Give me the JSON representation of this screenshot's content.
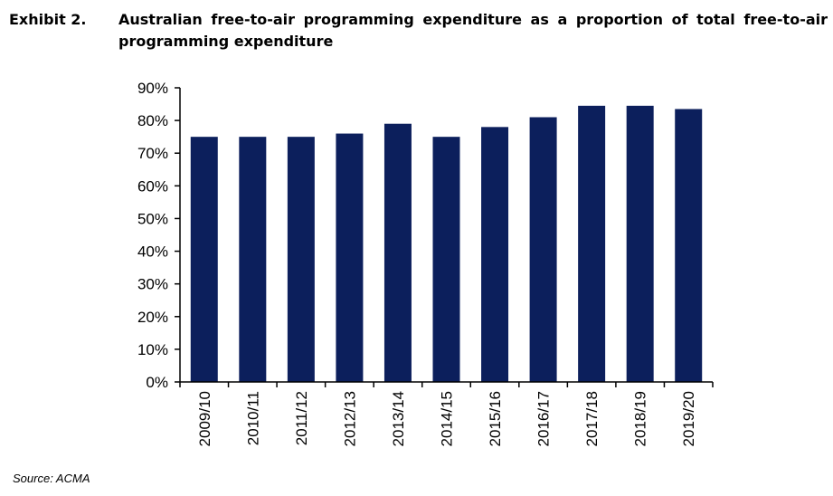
{
  "exhibit": {
    "label": "Exhibit 2.",
    "title": "Australian free-to-air programming expenditure as a proportion of total free-to-air programming expenditure"
  },
  "source": "Source: ACMA",
  "colors": {
    "bar": "#0c1f5c",
    "axis": "#000000",
    "text": "#000000"
  },
  "chart_data": {
    "type": "bar",
    "categories": [
      "2009/10",
      "2010/11",
      "2011/12",
      "2012/13",
      "2013/14",
      "2014/15",
      "2015/16",
      "2016/17",
      "2017/18",
      "2018/19",
      "2019/20"
    ],
    "values": [
      75,
      75,
      75,
      76,
      79,
      75,
      78,
      81,
      84.5,
      84.5,
      83.5
    ],
    "y_ticks": [
      "0%",
      "10%",
      "20%",
      "30%",
      "40%",
      "50%",
      "60%",
      "70%",
      "80%",
      "90%"
    ],
    "ylim": [
      0,
      90
    ],
    "grid": false,
    "legend": "none"
  }
}
